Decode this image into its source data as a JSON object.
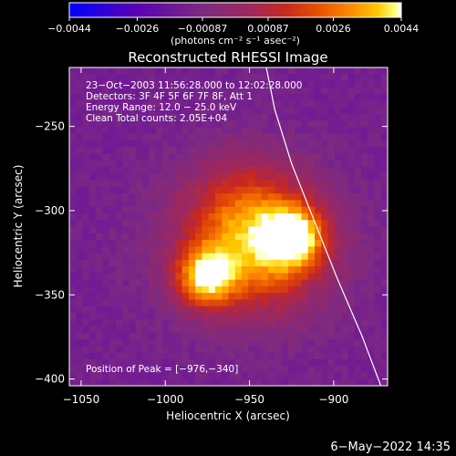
{
  "chart_data": {
    "type": "heatmap",
    "title": "Reconstructed RHESSI Image",
    "xlabel": "Heliocentric X (arcsec)",
    "ylabel": "Heliocentric Y (arcsec)",
    "xlim": [
      -1057,
      -868
    ],
    "ylim": [
      -404,
      -215
    ],
    "x_ticks": [
      {
        "value": -1050,
        "label": "−1050"
      },
      {
        "value": -1000,
        "label": "−1000"
      },
      {
        "value": -950,
        "label": "−950"
      },
      {
        "value": -900,
        "label": "−900"
      }
    ],
    "y_ticks": [
      {
        "value": -250,
        "label": "−250"
      },
      {
        "value": -300,
        "label": "−300"
      },
      {
        "value": -350,
        "label": "−350"
      },
      {
        "value": -400,
        "label": "−400"
      }
    ],
    "colorbar": {
      "range": [
        -0.0044,
        0.0044
      ],
      "tick_labels": [
        "−0.0044",
        "−0.0026",
        "−0.00087",
        "0.00087",
        "0.0026",
        "0.0044"
      ],
      "tick_values": [
        -0.0044,
        -0.0026,
        -0.00087,
        0.00087,
        0.0026,
        0.0044
      ],
      "units_label": "(photons cm⁻² s⁻¹ asec⁻²)",
      "colors": [
        "#0000ff",
        "#5a00b4",
        "#7d2a82",
        "#a0285a",
        "#c8281e",
        "#e65000",
        "#ff8c00",
        "#ffc800",
        "#ffff7a",
        "#ffffff"
      ]
    },
    "sources": [
      {
        "x": -976,
        "y": -340,
        "peak": 0.0044
      },
      {
        "x": -924,
        "y": -316,
        "peak": 0.004
      },
      {
        "x": -942,
        "y": -322,
        "peak": 0.0028
      },
      {
        "x": -955,
        "y": -300,
        "peak": 0.0018
      }
    ],
    "limb_line": [
      [
        -940,
        -215
      ],
      [
        -935,
        -240
      ],
      [
        -925,
        -272
      ],
      [
        -912,
        -305
      ],
      [
        -898,
        -340
      ],
      [
        -883,
        -375
      ],
      [
        -872,
        -404
      ]
    ],
    "annotations": [
      "23−Oct−2003 11:56:28.000 to 12:02:28.000",
      "Detectors: 3F 4F 5F 6F 7F 8F, Att 1",
      "Energy Range: 12.0 − 25.0 keV",
      "Clean    Total counts: 2.05E+04"
    ],
    "peak_text": "Position of Peak = [−976,−340]"
  },
  "footer": {
    "date": "6−May−2022 14:35"
  }
}
